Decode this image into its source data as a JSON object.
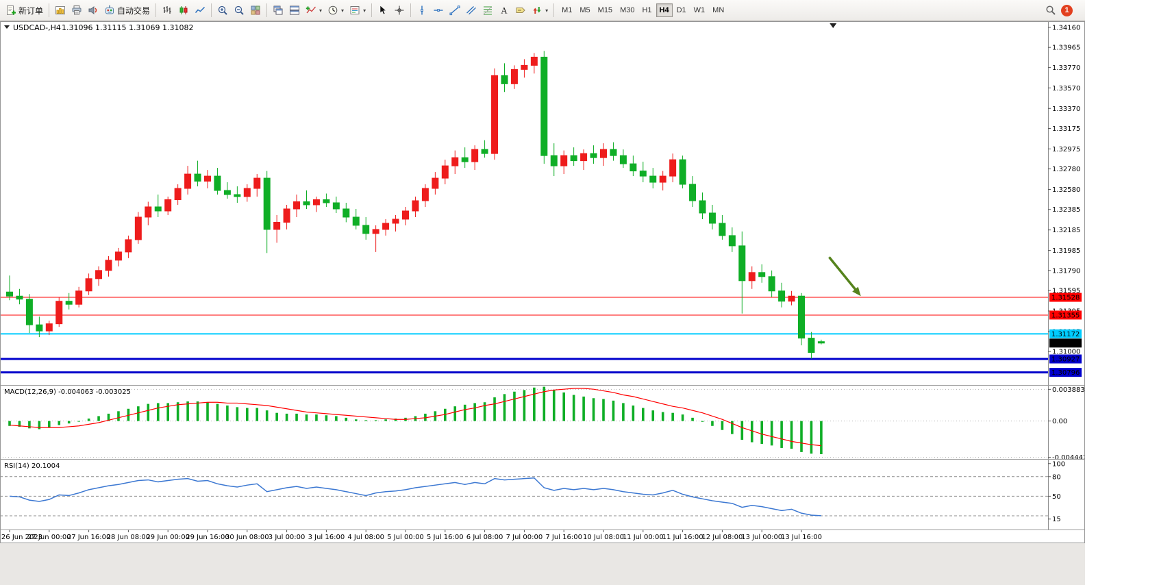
{
  "toolbar": {
    "new_order_label": "新订单",
    "auto_trading_label": "自动交易",
    "timeframes": [
      "M1",
      "M5",
      "M15",
      "M30",
      "H1",
      "H4",
      "D1",
      "W1",
      "MN"
    ],
    "active_timeframe": "H4",
    "notification_count": "1"
  },
  "chart": {
    "symbol_period": "USDCAD-,H4",
    "ohlc_readout": "1.31096 1.31115 1.31069 1.31082"
  },
  "chart_data": {
    "type": "candlestick",
    "symbol": "USDCAD-",
    "period": "H4",
    "up_color": "#ee1c1c",
    "down_color": "#0fae26",
    "price_axis": {
      "min": 1.3068,
      "max": 1.3422,
      "labels": [
        "1.34160",
        "1.33965",
        "1.33770",
        "1.33570",
        "1.33370",
        "1.33175",
        "1.32975",
        "1.32780",
        "1.32580",
        "1.32385",
        "1.32185",
        "1.31985",
        "1.31790",
        "1.31595",
        "1.31395",
        "1.31195",
        "1.31000"
      ]
    },
    "candles": [
      [
        1.3158,
        1.3174,
        1.315,
        1.3154
      ],
      [
        1.3154,
        1.3161,
        1.3146,
        1.3151
      ],
      [
        1.3151,
        1.3156,
        1.3118,
        1.3126
      ],
      [
        1.3126,
        1.3134,
        1.3114,
        1.312
      ],
      [
        1.312,
        1.313,
        1.3116,
        1.3127
      ],
      [
        1.3127,
        1.3153,
        1.3124,
        1.3149
      ],
      [
        1.3149,
        1.3157,
        1.3141,
        1.3146
      ],
      [
        1.3146,
        1.3163,
        1.3143,
        1.3159
      ],
      [
        1.3159,
        1.3176,
        1.3155,
        1.3171
      ],
      [
        1.3171,
        1.3183,
        1.3164,
        1.3179
      ],
      [
        1.3179,
        1.3193,
        1.3173,
        1.3189
      ],
      [
        1.3189,
        1.3201,
        1.3183,
        1.3197
      ],
      [
        1.3197,
        1.3213,
        1.3191,
        1.3209
      ],
      [
        1.3209,
        1.3236,
        1.3205,
        1.3231
      ],
      [
        1.3231,
        1.3246,
        1.3223,
        1.3241
      ],
      [
        1.3241,
        1.3253,
        1.3231,
        1.3237
      ],
      [
        1.3237,
        1.3251,
        1.3233,
        1.3248
      ],
      [
        1.3248,
        1.3263,
        1.3243,
        1.3259
      ],
      [
        1.3259,
        1.3281,
        1.3253,
        1.3273
      ],
      [
        1.3273,
        1.3286,
        1.3261,
        1.3266
      ],
      [
        1.3266,
        1.3277,
        1.3259,
        1.3271
      ],
      [
        1.3271,
        1.3279,
        1.3253,
        1.3257
      ],
      [
        1.3257,
        1.3265,
        1.3249,
        1.3253
      ],
      [
        1.3253,
        1.3261,
        1.3245,
        1.3251
      ],
      [
        1.3251,
        1.3263,
        1.3246,
        1.3259
      ],
      [
        1.3259,
        1.3273,
        1.3251,
        1.3269
      ],
      [
        1.3269,
        1.3276,
        1.3196,
        1.3219
      ],
      [
        1.3219,
        1.3233,
        1.3206,
        1.3226
      ],
      [
        1.3226,
        1.3243,
        1.3219,
        1.3239
      ],
      [
        1.3239,
        1.3253,
        1.3231,
        1.3246
      ],
      [
        1.3246,
        1.3257,
        1.3239,
        1.3243
      ],
      [
        1.3243,
        1.3251,
        1.3236,
        1.3248
      ],
      [
        1.3248,
        1.3254,
        1.3241,
        1.3245
      ],
      [
        1.3245,
        1.3251,
        1.3235,
        1.3239
      ],
      [
        1.3239,
        1.3245,
        1.3226,
        1.3231
      ],
      [
        1.3231,
        1.3239,
        1.3219,
        1.3223
      ],
      [
        1.3223,
        1.3231,
        1.3209,
        1.3215
      ],
      [
        1.3215,
        1.3223,
        1.3197,
        1.3219
      ],
      [
        1.3219,
        1.3229,
        1.3213,
        1.3225
      ],
      [
        1.3225,
        1.3233,
        1.3217,
        1.3229
      ],
      [
        1.3229,
        1.3241,
        1.3223,
        1.3237
      ],
      [
        1.3237,
        1.3251,
        1.3231,
        1.3247
      ],
      [
        1.3247,
        1.3263,
        1.3241,
        1.3259
      ],
      [
        1.3259,
        1.3275,
        1.3253,
        1.3269
      ],
      [
        1.3269,
        1.3287,
        1.3263,
        1.3281
      ],
      [
        1.3281,
        1.3296,
        1.3273,
        1.3289
      ],
      [
        1.3289,
        1.3299,
        1.3279,
        1.3285
      ],
      [
        1.3285,
        1.3301,
        1.3277,
        1.3297
      ],
      [
        1.3297,
        1.3306,
        1.3289,
        1.3293
      ],
      [
        1.3293,
        1.3376,
        1.3287,
        1.3369
      ],
      [
        1.3369,
        1.3381,
        1.3353,
        1.3361
      ],
      [
        1.3361,
        1.3379,
        1.3356,
        1.3375
      ],
      [
        1.3375,
        1.3385,
        1.3367,
        1.3379
      ],
      [
        1.3379,
        1.3391,
        1.3371,
        1.3387
      ],
      [
        1.3387,
        1.3393,
        1.3283,
        1.3291
      ],
      [
        1.3291,
        1.3303,
        1.3271,
        1.3281
      ],
      [
        1.3281,
        1.3296,
        1.3273,
        1.3291
      ],
      [
        1.3291,
        1.3299,
        1.3281,
        1.3286
      ],
      [
        1.3286,
        1.3297,
        1.3277,
        1.3293
      ],
      [
        1.3293,
        1.3301,
        1.3283,
        1.3289
      ],
      [
        1.3289,
        1.3303,
        1.3281,
        1.3297
      ],
      [
        1.3297,
        1.3304,
        1.3286,
        1.3291
      ],
      [
        1.3291,
        1.3297,
        1.3279,
        1.3283
      ],
      [
        1.3283,
        1.3291,
        1.3271,
        1.3276
      ],
      [
        1.3276,
        1.3285,
        1.3265,
        1.3271
      ],
      [
        1.3271,
        1.3279,
        1.3259,
        1.3265
      ],
      [
        1.3265,
        1.3276,
        1.3257,
        1.3271
      ],
      [
        1.3271,
        1.3293,
        1.3265,
        1.3287
      ],
      [
        1.3287,
        1.3291,
        1.3259,
        1.3263
      ],
      [
        1.3263,
        1.3271,
        1.3241,
        1.3247
      ],
      [
        1.3247,
        1.3255,
        1.3229,
        1.3235
      ],
      [
        1.3235,
        1.3243,
        1.3219,
        1.3225
      ],
      [
        1.3225,
        1.3233,
        1.3209,
        1.3213
      ],
      [
        1.3213,
        1.3221,
        1.3197,
        1.3203
      ],
      [
        1.3203,
        1.3217,
        1.3137,
        1.3169
      ],
      [
        1.3169,
        1.3183,
        1.3161,
        1.3177
      ],
      [
        1.3177,
        1.3185,
        1.3167,
        1.3173
      ],
      [
        1.3173,
        1.3179,
        1.3153,
        1.3159
      ],
      [
        1.3159,
        1.3167,
        1.3143,
        1.3149
      ],
      [
        1.3149,
        1.3159,
        1.3145,
        1.3154
      ],
      [
        1.3154,
        1.3157,
        1.3106,
        1.3113
      ],
      [
        1.3113,
        1.3119,
        1.3093,
        1.3099
      ],
      [
        1.31096,
        1.31115,
        1.31069,
        1.31082
      ]
    ],
    "time_labels": [
      "26 Jun 2023",
      "27 Jun 00:00",
      "27 Jun 16:00",
      "28 Jun 08:00",
      "29 Jun 00:00",
      "29 Jun 16:00",
      "30 Jun 08:00",
      "3 Jul 00:00",
      "3 Jul 16:00",
      "4 Jul 08:00",
      "5 Jul 00:00",
      "5 Jul 16:00",
      "6 Jul 08:00",
      "7 Jul 00:00",
      "7 Jul 16:00",
      "10 Jul 08:00",
      "11 Jul 00:00",
      "11 Jul 16:00",
      "12 Jul 08:00",
      "13 Jul 00:00",
      "13 Jul 16:00"
    ],
    "label_every": 4,
    "hlines": [
      {
        "price": 1.31528,
        "label": "1.31528",
        "color": "#ff0000",
        "width": 1,
        "label_bg": "#ff0000",
        "label_fg": "#ffffff"
      },
      {
        "price": 1.31355,
        "label": "1.31355",
        "color": "#ff0000",
        "width": 1,
        "label_bg": "#ff0000",
        "label_fg": "#ffffff"
      },
      {
        "price": 1.31172,
        "label": "1.31172",
        "color": "#00ccff",
        "width": 2,
        "label_bg": "#00ccff",
        "label_fg": "#000000"
      },
      {
        "price": 1.30927,
        "label": "1.30927",
        "color": "#0000cc",
        "width": 3,
        "label_bg": "#0000cc",
        "label_fg": "#ffffff"
      },
      {
        "price": 1.30796,
        "label": "1.30796",
        "color": "#0000cc",
        "width": 3,
        "label_bg": "#0000cc",
        "label_fg": "#ffffff"
      }
    ],
    "price_marker": {
      "price": 1.31082,
      "label": "1.31082",
      "bg": "#000000",
      "fg": "#ffffff"
    },
    "arrow_annotation": {
      "from_bar": 82.8,
      "from_price": 1.3192,
      "to_bar": 86.0,
      "to_price": 1.3154,
      "color": "#55831c"
    },
    "shift_marker_bar": 83.2,
    "macd": {
      "label": "MACD(12,26,9) -0.004063 -0.003025",
      "hist_color": "#0fae26",
      "signal_color": "#ff0000",
      "scale": {
        "min": -0.00465,
        "max": 0.00425
      },
      "scale_labels": [
        {
          "v": 0.003883,
          "t": "0.003883"
        },
        {
          "v": 0,
          "t": "0.00"
        },
        {
          "v": -0.004442,
          "t": "-0.004442"
        }
      ],
      "hist": [
        -0.0006,
        -0.0007,
        -0.0009,
        -0.001,
        -0.0008,
        -0.0005,
        -0.0003,
        0.0,
        0.0003,
        0.0006,
        0.0009,
        0.0012,
        0.0015,
        0.0018,
        0.0021,
        0.0022,
        0.0022,
        0.0023,
        0.0024,
        0.0024,
        0.0023,
        0.0021,
        0.0019,
        0.0017,
        0.0016,
        0.0016,
        0.0013,
        0.001,
        0.0009,
        0.0009,
        0.0008,
        0.0008,
        0.0007,
        0.0006,
        0.0004,
        0.0002,
        0.0001,
        0.0001,
        0.0002,
        0.0003,
        0.0004,
        0.0006,
        0.0009,
        0.0012,
        0.0015,
        0.0018,
        0.002,
        0.0022,
        0.0023,
        0.0029,
        0.0033,
        0.0036,
        0.0038,
        0.0041,
        0.0042,
        0.0038,
        0.0035,
        0.0032,
        0.003,
        0.0028,
        0.0027,
        0.0025,
        0.0022,
        0.0019,
        0.0016,
        0.0013,
        0.0011,
        0.001,
        0.0008,
        0.0004,
        -0.0001,
        -0.0006,
        -0.0011,
        -0.0016,
        -0.0023,
        -0.0026,
        -0.0028,
        -0.003,
        -0.0033,
        -0.0034,
        -0.0038,
        -0.004,
        -0.004063
      ],
      "signal": [
        -0.0005,
        -0.0006,
        -0.0007,
        -0.0008,
        -0.0008,
        -0.0008,
        -0.0007,
        -0.0006,
        -0.0004,
        -0.0002,
        0.0001,
        0.0004,
        0.0007,
        0.001,
        0.0013,
        0.0016,
        0.0018,
        0.002,
        0.0021,
        0.0022,
        0.0023,
        0.0023,
        0.0022,
        0.0022,
        0.0021,
        0.002,
        0.0019,
        0.0017,
        0.0015,
        0.0013,
        0.0011,
        0.001,
        0.0009,
        0.0008,
        0.0007,
        0.0006,
        0.0005,
        0.0004,
        0.0003,
        0.0002,
        0.0002,
        0.0003,
        0.0004,
        0.0006,
        0.0008,
        0.0011,
        0.0014,
        0.0016,
        0.0019,
        0.0021,
        0.0024,
        0.0027,
        0.003,
        0.0033,
        0.0036,
        0.0038,
        0.0039,
        0.004,
        0.004,
        0.0039,
        0.0037,
        0.0035,
        0.0032,
        0.003,
        0.0027,
        0.0024,
        0.0021,
        0.0018,
        0.0016,
        0.0013,
        0.001,
        0.0006,
        0.0002,
        -0.0003,
        -0.0008,
        -0.0012,
        -0.0016,
        -0.0019,
        -0.0022,
        -0.0025,
        -0.0027,
        -0.0029,
        -0.003025
      ]
    },
    "rsi": {
      "label": "RSI(14) 20.1004",
      "color": "#3c78d2",
      "range": [
        0,
        105
      ],
      "levels": [
        80,
        50,
        20
      ],
      "scale_labels": [
        {
          "v": 100,
          "t": "100"
        },
        {
          "v": 80,
          "t": "80"
        },
        {
          "v": 50,
          "t": "50"
        },
        {
          "v": 15,
          "t": "15"
        }
      ],
      "values": [
        50,
        49,
        44,
        42,
        45,
        52,
        51,
        55,
        60,
        63,
        66,
        68,
        71,
        74,
        75,
        72,
        74,
        76,
        77,
        73,
        74,
        69,
        66,
        64,
        67,
        69,
        57,
        60,
        63,
        65,
        62,
        64,
        62,
        60,
        57,
        54,
        51,
        55,
        57,
        58,
        60,
        63,
        65,
        67,
        69,
        71,
        68,
        71,
        69,
        77,
        75,
        76,
        77,
        78,
        63,
        59,
        62,
        60,
        62,
        60,
        62,
        60,
        57,
        55,
        53,
        52,
        55,
        59,
        53,
        49,
        46,
        43,
        41,
        39,
        33,
        36,
        34,
        31,
        28,
        30,
        24,
        21,
        20.1
      ]
    }
  }
}
